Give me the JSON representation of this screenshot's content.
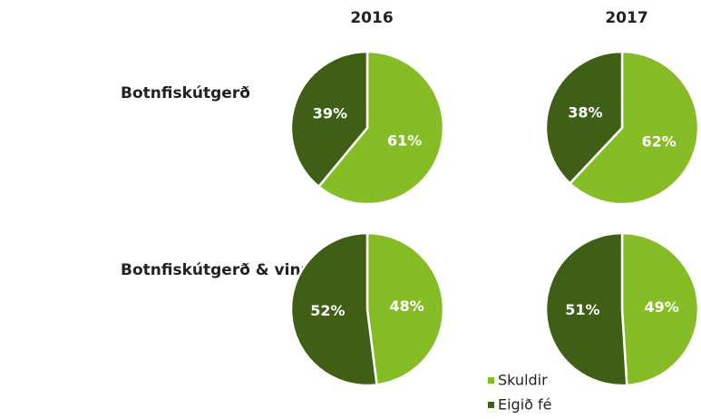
{
  "columns": [
    "2016",
    "2017"
  ],
  "rows": [
    "Botnfiskútgerð",
    "Botnfiskútgerð & vinnsla"
  ],
  "categories": [
    "Skuldir",
    "Eigið fé"
  ],
  "colors": [
    "#86bc25",
    "#3f5f16"
  ],
  "chart_data": [
    {
      "type": "pie",
      "values": [
        61,
        39
      ],
      "value_labels": [
        "61%",
        "39%"
      ]
    },
    {
      "type": "pie",
      "values": [
        62,
        38
      ],
      "value_labels": [
        "62%",
        "38%"
      ]
    },
    {
      "type": "pie",
      "values": [
        48,
        52
      ],
      "value_labels": [
        "48%",
        "52%"
      ]
    },
    {
      "type": "pie",
      "values": [
        49,
        51
      ],
      "value_labels": [
        "49%",
        "51%"
      ]
    }
  ]
}
